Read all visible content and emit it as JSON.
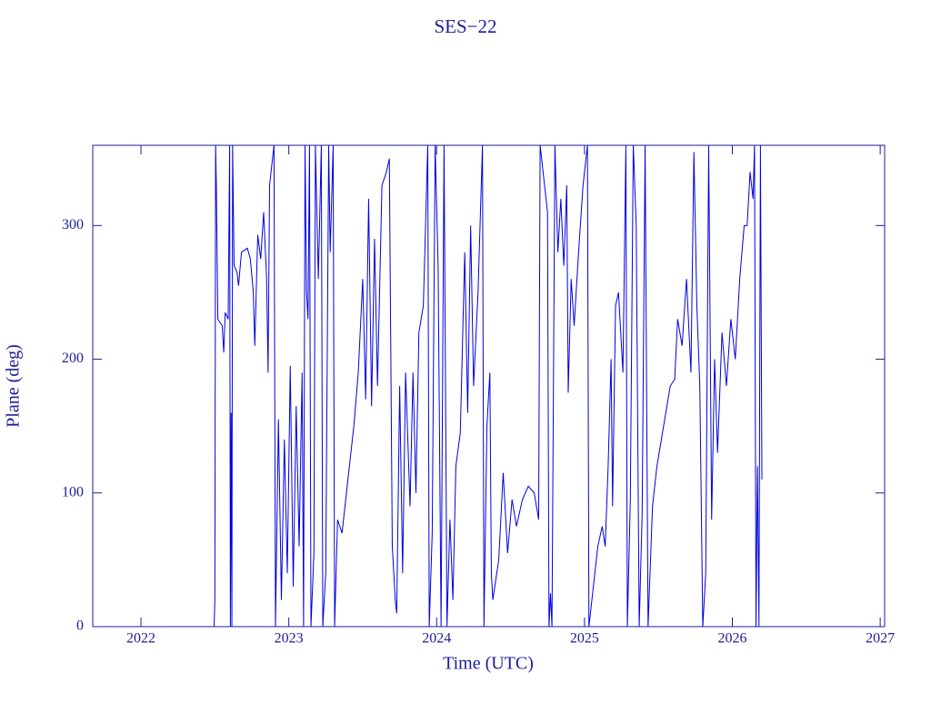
{
  "chart_data": {
    "type": "line",
    "title": "SES−22",
    "x_label": "Time (UTC)",
    "y_label": "Plane (deg)",
    "xlim": [
      2021.674,
      2027.03
    ],
    "ylim": [
      0,
      360
    ],
    "xticks": [
      2022,
      2023,
      2024,
      2025,
      2026,
      2027
    ],
    "yticks": [
      0,
      100,
      200,
      300
    ],
    "grid": false,
    "series": [
      {
        "name": "SES−22",
        "color": "#0000e0",
        "x": [
          2022.495,
          2022.5,
          2022.505,
          2022.51,
          2022.52,
          2022.55,
          2022.56,
          2022.57,
          2022.59,
          2022.6,
          2022.605,
          2022.61,
          2022.615,
          2022.62,
          2022.63,
          2022.65,
          2022.66,
          2022.68,
          2022.72,
          2022.74,
          2022.76,
          2022.77,
          2022.79,
          2022.81,
          2022.83,
          2022.85,
          2022.86,
          2022.87,
          2022.9,
          2022.91,
          2022.93,
          2022.95,
          2022.97,
          2022.99,
          2023.01,
          2023.03,
          2023.05,
          2023.07,
          2023.09,
          2023.1,
          2023.11,
          2023.12,
          2023.13,
          2023.14,
          2023.15,
          2023.17,
          2023.18,
          2023.2,
          2023.22,
          2023.23,
          2023.25,
          2023.27,
          2023.28,
          2023.3,
          2023.31,
          2023.33,
          2023.36,
          2023.4,
          2023.44,
          2023.47,
          2023.5,
          2023.52,
          2023.54,
          2023.56,
          2023.58,
          2023.6,
          2023.63,
          2023.66,
          2023.68,
          2023.7,
          2023.72,
          2023.73,
          2023.75,
          2023.77,
          2023.79,
          2023.82,
          2023.84,
          2023.86,
          2023.88,
          2023.91,
          2023.94,
          2023.95,
          2023.97,
          2023.99,
          2024.01,
          2024.03,
          2024.05,
          2024.07,
          2024.09,
          2024.11,
          2024.13,
          2024.16,
          2024.19,
          2024.21,
          2024.23,
          2024.25,
          2024.28,
          2024.31,
          2024.32,
          2024.34,
          2024.36,
          2024.37,
          2024.38,
          2024.42,
          2024.45,
          2024.48,
          2024.51,
          2024.54,
          2024.58,
          2024.62,
          2024.66,
          2024.69,
          2024.7,
          2024.73,
          2024.75,
          2024.76,
          2024.77,
          2024.78,
          2024.8,
          2024.82,
          2024.84,
          2024.86,
          2024.88,
          2024.89,
          2024.91,
          2024.93,
          2024.96,
          2024.99,
          2025.02,
          2025.03,
          2025.06,
          2025.09,
          2025.12,
          2025.14,
          2025.16,
          2025.18,
          2025.19,
          2025.21,
          2025.23,
          2025.26,
          2025.28,
          2025.29,
          2025.31,
          2025.33,
          2025.35,
          2025.37,
          2025.39,
          2025.41,
          2025.43,
          2025.46,
          2025.49,
          2025.52,
          2025.55,
          2025.58,
          2025.61,
          2025.63,
          2025.66,
          2025.69,
          2025.72,
          2025.74,
          2025.76,
          2025.78,
          2025.8,
          2025.82,
          2025.84,
          2025.86,
          2025.88,
          2025.9,
          2025.93,
          2025.96,
          2025.99,
          2026.02,
          2026.05,
          2026.08,
          2026.1,
          2026.12,
          2026.14,
          2026.15,
          2026.16,
          2026.17,
          2026.18,
          2026.19,
          2026.2
        ],
        "values": [
          0,
          20,
          360,
          330,
          230,
          225,
          205,
          235,
          230,
          360,
          0,
          160,
          0,
          360,
          270,
          265,
          255,
          280,
          283,
          275,
          250,
          210,
          293,
          275,
          310,
          260,
          190,
          330,
          360,
          0,
          155,
          20,
          140,
          40,
          195,
          30,
          165,
          60,
          190,
          0,
          360,
          250,
          230,
          360,
          0,
          55,
          360,
          260,
          360,
          0,
          40,
          360,
          280,
          360,
          0,
          80,
          70,
          110,
          150,
          190,
          260,
          170,
          320,
          165,
          290,
          180,
          330,
          340,
          350,
          60,
          20,
          10,
          180,
          40,
          190,
          90,
          190,
          100,
          220,
          240,
          360,
          0,
          70,
          360,
          270,
          0,
          360,
          0,
          80,
          20,
          120,
          145,
          280,
          160,
          300,
          180,
          250,
          360,
          0,
          150,
          190,
          40,
          20,
          50,
          115,
          55,
          95,
          75,
          95,
          105,
          100,
          80,
          360,
          330,
          310,
          0,
          25,
          0,
          360,
          280,
          320,
          270,
          330,
          175,
          260,
          225,
          280,
          330,
          360,
          0,
          30,
          60,
          75,
          60,
          120,
          200,
          90,
          240,
          250,
          190,
          360,
          0,
          95,
          360,
          300,
          0,
          85,
          360,
          0,
          90,
          120,
          140,
          160,
          180,
          185,
          230,
          210,
          260,
          190,
          355,
          240,
          180,
          0,
          40,
          360,
          80,
          200,
          130,
          220,
          180,
          230,
          200,
          260,
          300,
          300,
          340,
          320,
          360,
          0,
          120,
          0,
          360,
          110
        ]
      }
    ]
  }
}
